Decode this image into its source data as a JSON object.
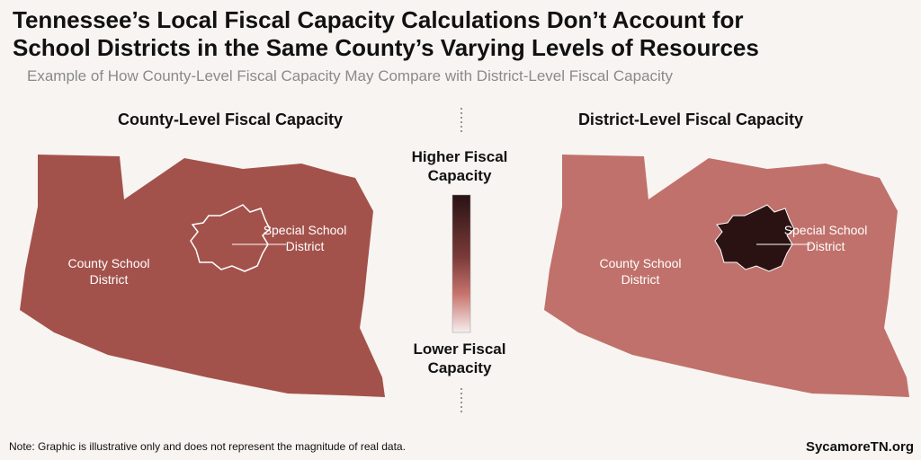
{
  "header": {
    "title_lines": [
      "Tennessee’s Local Fiscal Capacity Calculations Don’t Account for",
      "School Districts in the Same County’s Varying Levels of Resources"
    ],
    "subtitle": "Example of How County-Level Fiscal Capacity May Compare with District-Level Fiscal Capacity"
  },
  "panels": [
    {
      "heading": "County-Level Fiscal Capacity",
      "county_label": [
        "County School",
        "District"
      ],
      "special_label": [
        "Special School",
        "District"
      ]
    },
    {
      "heading": "District-Level Fiscal Capacity",
      "county_label": [
        "County School",
        "District"
      ],
      "special_label": [
        "Special School",
        "District"
      ]
    }
  ],
  "legend": {
    "high": [
      "Higher Fiscal",
      "Capacity"
    ],
    "low": [
      "Lower Fiscal",
      "Capacity"
    ]
  },
  "footer": {
    "note": "Note: Graphic is illustrative only and does not represent the magnitude of real data.",
    "brand": "SycamoreTN.org"
  }
}
